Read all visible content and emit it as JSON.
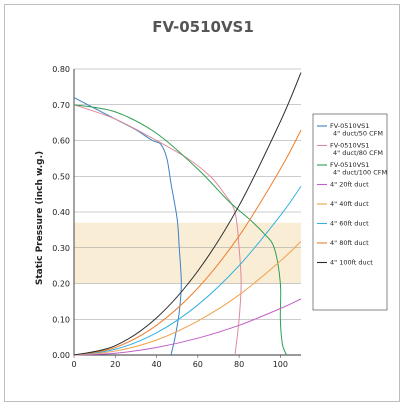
{
  "chart_data": {
    "type": "line",
    "title": "FV-0510VS1",
    "ylabel": "Static Pressure (inch w.g.)",
    "xlabel": "",
    "xlim": [
      0,
      110
    ],
    "ylim": [
      0,
      0.8
    ],
    "xticks": [
      "0",
      "20",
      "40",
      "60",
      "80",
      "100"
    ],
    "yticks": [
      "0.00",
      "0.10",
      "0.20",
      "0.30",
      "0.40",
      "0.50",
      "0.60",
      "0.70",
      "0.80"
    ],
    "grid": "horizontal",
    "shaded_band": {
      "y_from": 0.2,
      "y_to": 0.37,
      "color": "#faedd6"
    },
    "legend_position": "right",
    "series": [
      {
        "name": "FV-0510VS1 4\" duct/50 CFM",
        "kind": "fan",
        "color": "#3b82c4",
        "x": [
          0,
          10,
          20,
          30,
          38,
          42,
          45,
          47,
          50,
          51,
          52,
          51,
          49,
          47
        ],
        "y": [
          0.72,
          0.69,
          0.66,
          0.63,
          0.6,
          0.59,
          0.55,
          0.48,
          0.38,
          0.3,
          0.2,
          0.12,
          0.05,
          0.0
        ]
      },
      {
        "name": "FV-0510VS1 4\" duct/80 CFM",
        "kind": "fan",
        "color": "#e08a9a",
        "x": [
          0,
          20,
          40,
          55,
          66,
          73,
          78,
          80,
          81,
          80,
          78
        ],
        "y": [
          0.7,
          0.66,
          0.6,
          0.55,
          0.5,
          0.45,
          0.4,
          0.3,
          0.2,
          0.1,
          0.0
        ]
      },
      {
        "name": "FV-0510VS1 4\" duct/100 CFM",
        "kind": "fan",
        "color": "#2f9e53",
        "x": [
          0,
          20,
          40,
          60,
          75,
          85,
          92,
          97,
          100,
          100,
          101,
          103
        ],
        "y": [
          0.7,
          0.68,
          0.62,
          0.52,
          0.43,
          0.38,
          0.34,
          0.3,
          0.2,
          0.1,
          0.03,
          0.0
        ]
      },
      {
        "name": "4\" 20ft duct",
        "kind": "duct",
        "color": "#c25ec7",
        "x": [
          0,
          20,
          40,
          60,
          80,
          100,
          110
        ],
        "y": [
          0.0,
          0.005,
          0.021,
          0.047,
          0.083,
          0.13,
          0.157
        ]
      },
      {
        "name": "4\" 40ft duct",
        "kind": "duct",
        "color": "#f0a24b",
        "x": [
          0,
          20,
          40,
          60,
          80,
          100,
          110
        ],
        "y": [
          0.0,
          0.011,
          0.042,
          0.095,
          0.168,
          0.263,
          0.318
        ]
      },
      {
        "name": "4\" 60ft duct",
        "kind": "duct",
        "color": "#33b1e0",
        "x": [
          0,
          20,
          40,
          60,
          80,
          100,
          110
        ],
        "y": [
          0.0,
          0.016,
          0.062,
          0.14,
          0.25,
          0.39,
          0.472
        ]
      },
      {
        "name": "4\" 80ft duct",
        "kind": "duct",
        "color": "#ef7e2c",
        "x": [
          0,
          20,
          40,
          60,
          80,
          100,
          110
        ],
        "y": [
          0.0,
          0.021,
          0.083,
          0.187,
          0.333,
          0.52,
          0.629
        ]
      },
      {
        "name": "4\" 100ft duct",
        "kind": "duct",
        "color": "#2c2c2c",
        "x": [
          0,
          20,
          40,
          60,
          80,
          100,
          110
        ],
        "y": [
          0.0,
          0.026,
          0.104,
          0.235,
          0.418,
          0.653,
          0.79
        ]
      }
    ]
  }
}
